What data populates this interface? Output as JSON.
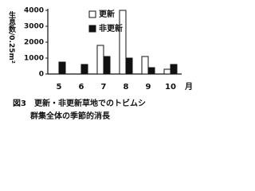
{
  "chart_data": {
    "type": "bar",
    "y_label": "生息数/0.25m²",
    "x_label": "月",
    "categories": [
      "5",
      "6",
      "7",
      "8",
      "9",
      "10"
    ],
    "series": [
      {
        "name": "更新",
        "color": "#ffffff",
        "values": [
          0,
          0,
          1800,
          4000,
          1100,
          300
        ]
      },
      {
        "name": "非更新",
        "color": "#111111",
        "values": [
          750,
          600,
          1100,
          1000,
          400,
          600
        ]
      }
    ],
    "ylim": [
      0,
      4000
    ],
    "yticks": [
      0,
      1000,
      2000,
      3000,
      4000
    ],
    "caption": [
      "図3　更新・非更新草地でのトビムシ",
      "群集全体の季節的消長"
    ]
  }
}
